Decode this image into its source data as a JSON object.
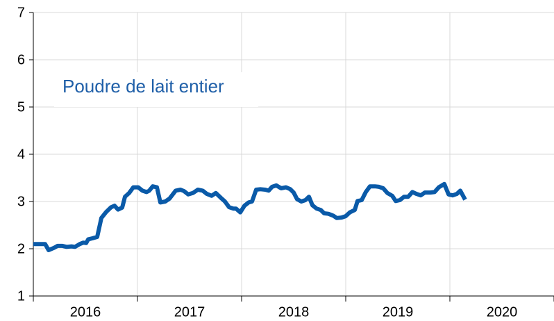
{
  "chart_data": {
    "type": "line",
    "annotation": "Poudre de lait entier",
    "categories": [
      "2016",
      "2017",
      "2018",
      "2019",
      "2020"
    ],
    "xlim": [
      2016,
      2021
    ],
    "xticks": [
      2016,
      2017,
      2018,
      2019,
      2020,
      2021
    ],
    "ylim": [
      1,
      7
    ],
    "yticks": [
      1,
      2,
      3,
      4,
      5,
      6,
      7
    ],
    "grid": true,
    "x": [
      2016.0,
      2016.113,
      2016.147,
      2016.2,
      2016.233,
      2016.28,
      2016.32,
      2016.367,
      2016.4,
      2016.447,
      2016.48,
      2016.507,
      2016.527,
      2016.567,
      2016.613,
      2016.653,
      2016.7,
      2016.747,
      2016.78,
      2016.813,
      2016.853,
      2016.88,
      2016.92,
      2016.96,
      2017.007,
      2017.047,
      2017.087,
      2017.113,
      2017.147,
      2017.187,
      2017.22,
      2017.267,
      2017.307,
      2017.367,
      2017.413,
      2017.447,
      2017.487,
      2017.533,
      2017.58,
      2017.627,
      2017.667,
      2017.713,
      2017.753,
      2017.8,
      2017.84,
      2017.88,
      2017.92,
      2017.947,
      2017.987,
      2018.027,
      2018.067,
      2018.1,
      2018.14,
      2018.18,
      2018.227,
      2018.26,
      2018.293,
      2018.333,
      2018.38,
      2018.427,
      2018.467,
      2018.5,
      2018.533,
      2018.573,
      2018.613,
      2018.647,
      2018.68,
      2018.72,
      2018.76,
      2018.793,
      2018.833,
      2018.88,
      2018.913,
      2018.96,
      2019.0,
      2019.04,
      2019.087,
      2019.113,
      2019.153,
      2019.193,
      2019.233,
      2019.28,
      2019.32,
      2019.36,
      2019.4,
      2019.447,
      2019.48,
      2019.52,
      2019.56,
      2019.6,
      2019.64,
      2019.68,
      2019.72,
      2019.76,
      2019.813,
      2019.853,
      2019.893,
      2019.947,
      2019.987,
      2020.027,
      2020.067,
      2020.1,
      2020.147
    ],
    "series": [
      {
        "color": "#0a5aa8",
        "values": [
          2.1,
          2.1,
          1.97,
          2.02,
          2.06,
          2.06,
          2.04,
          2.05,
          2.04,
          2.1,
          2.13,
          2.12,
          2.2,
          2.22,
          2.25,
          2.65,
          2.78,
          2.88,
          2.91,
          2.83,
          2.87,
          3.1,
          3.18,
          3.3,
          3.3,
          3.23,
          3.2,
          3.23,
          3.32,
          3.3,
          2.98,
          3.0,
          3.06,
          3.23,
          3.25,
          3.22,
          3.15,
          3.18,
          3.25,
          3.23,
          3.16,
          3.12,
          3.18,
          3.08,
          3.0,
          2.88,
          2.85,
          2.85,
          2.77,
          2.91,
          2.98,
          3.0,
          3.25,
          3.26,
          3.25,
          3.23,
          3.31,
          3.34,
          3.28,
          3.3,
          3.26,
          3.19,
          3.05,
          3.0,
          3.03,
          3.1,
          2.92,
          2.85,
          2.82,
          2.75,
          2.74,
          2.7,
          2.65,
          2.66,
          2.69,
          2.77,
          2.82,
          3.01,
          3.03,
          3.2,
          3.32,
          3.32,
          3.31,
          3.28,
          3.18,
          3.12,
          3.01,
          3.03,
          3.1,
          3.1,
          3.2,
          3.16,
          3.13,
          3.19,
          3.19,
          3.2,
          3.3,
          3.37,
          3.15,
          3.13,
          3.16,
          3.23,
          3.04
        ]
      }
    ]
  }
}
